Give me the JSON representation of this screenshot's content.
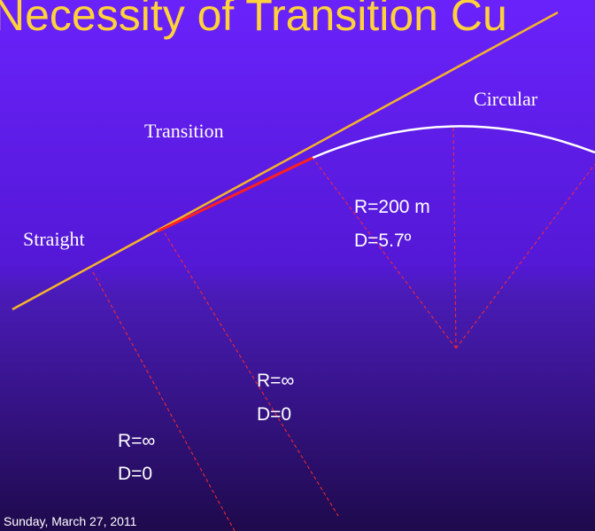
{
  "header": {
    "title": "Necessity of Transition Cu"
  },
  "labels": {
    "circular": "Circular",
    "transition": "Transition",
    "straight": "Straight"
  },
  "circular_curve": {
    "radius": "R=200 m",
    "degree": "D=5.7º"
  },
  "transition_curve": {
    "radius": "R=∞",
    "degree": "D=0"
  },
  "straight": {
    "radius": "R=∞",
    "degree": "D=0"
  },
  "footer": {
    "date": "Sunday, March 27, 2011"
  }
}
